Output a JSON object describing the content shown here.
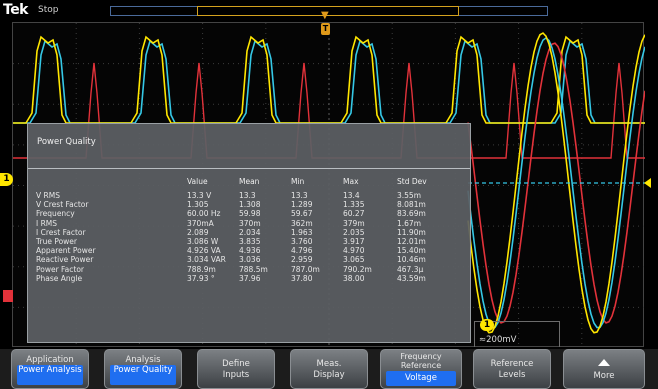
{
  "header": {
    "brand": "Tek",
    "state": "Stop"
  },
  "colors": {
    "ch1": "#ffe600",
    "ch2": "#35c8e6",
    "ch3": "#e2323a",
    "trigger": "#e09a1a",
    "menu_selected": "#1f6ef0"
  },
  "markers": {
    "ch1": "1",
    "trigger": "T"
  },
  "scale": "≈200mV",
  "power_quality": {
    "title": "Power Quality",
    "columns": [
      "",
      "Value",
      "Mean",
      "Min",
      "Max",
      "Std Dev"
    ],
    "rows": [
      [
        "V RMS",
        "13.3 V",
        "13.3",
        "13.3",
        "13.4",
        "3.55m"
      ],
      [
        "V Crest Factor",
        "1.305",
        "1.308",
        "1.289",
        "1.335",
        "8.081m"
      ],
      [
        "Frequency",
        "60.00 Hz",
        "59.98",
        "59.67",
        "60.27",
        "83.69m"
      ],
      [
        "I RMS",
        "370mA",
        "370m",
        "362m",
        "379m",
        "1.67m"
      ],
      [
        "I Crest Factor",
        "2.089",
        "2.034",
        "1.963",
        "2.035",
        "11.90m"
      ],
      [
        "True Power",
        "3.086 W",
        "3.835",
        "3.760",
        "3.917",
        "12.01m"
      ],
      [
        "Apparent Power",
        "4.926 VA",
        "4.936",
        "4.796",
        "4.970",
        "15.40m"
      ],
      [
        "Reactive Power",
        "3.034 VAR",
        "3.036",
        "2.959",
        "3.065",
        "10.46m"
      ],
      [
        "Power Factor",
        "788.9m",
        "788.5m",
        "787.0m",
        "790.2m",
        "467.3µ"
      ],
      [
        "Phase Angle",
        "37.93 °",
        "37.96",
        "37.80",
        "38.00",
        "43.59m"
      ]
    ]
  },
  "menu": [
    {
      "line1": "Application",
      "selected": "Power Analysis"
    },
    {
      "line1": "Analysis",
      "selected": "Power Quality"
    },
    {
      "line1": "Define",
      "line2": "Inputs"
    },
    {
      "line1": "Meas.",
      "line2": "Display"
    },
    {
      "line1": "Frequency Reference",
      "selected": "Voltage"
    },
    {
      "line1": "Reference",
      "line2": "Levels"
    },
    {
      "line1": "",
      "line2": "More",
      "icon": "arrow-up-icon"
    }
  ]
}
